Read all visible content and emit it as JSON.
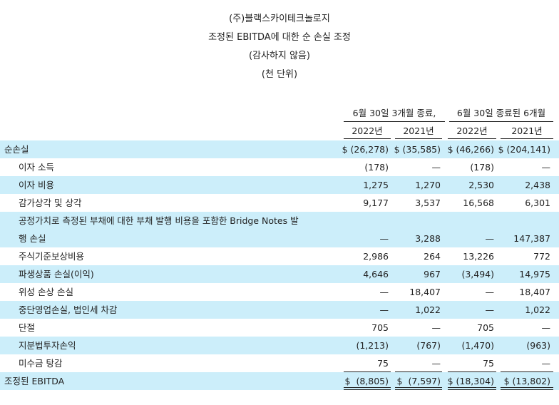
{
  "title": {
    "company": "(주)블랙스카이테크놀로지",
    "statement": "조정된 EBITDA에 대한 순 손실 조정",
    "audit_note": "(감사하지 않음)",
    "unit_note": "(천 단위)"
  },
  "columns": {
    "group1": "6월 30일 3개월 종료,",
    "group2": "6월 30일 종료된 6개월",
    "years": [
      "2022년",
      "2021년",
      "2022년",
      "2021년"
    ]
  },
  "rows": [
    {
      "label": "순손실",
      "values": [
        "$ (26,278)",
        "$ (35,585)",
        "$ (46,266)",
        "$ (204,141)"
      ]
    },
    {
      "label": "이자 소득",
      "values": [
        "(178)",
        "—",
        "(178)",
        "—"
      ]
    },
    {
      "label": "이자 비용",
      "values": [
        "1,275",
        "1,270",
        "2,530",
        "2,438"
      ]
    },
    {
      "label": "감가상각 및 상각",
      "values": [
        "9,177",
        "3,537",
        "16,568",
        "6,301"
      ]
    },
    {
      "label": "공정가치로 측정된 부채에 대한 부채 발행 비용을 포함한 Bridge Notes 발",
      "label_cont": "행 손실",
      "values": [
        "—",
        "3,288",
        "—",
        "147,387"
      ]
    },
    {
      "label": "주식기준보상비용",
      "values": [
        "2,986",
        "264",
        "13,226",
        "772"
      ]
    },
    {
      "label": "파생상품 손실(이익)",
      "values": [
        "4,646",
        "967",
        "(3,494)",
        "14,975"
      ]
    },
    {
      "label": "위성 손상 손실",
      "values": [
        "—",
        "18,407",
        "—",
        "18,407"
      ]
    },
    {
      "label": "중단영업손실, 법인세 차감",
      "values": [
        "—",
        "1,022",
        "—",
        "1,022"
      ]
    },
    {
      "label": "단절",
      "values": [
        "705",
        "—",
        "705",
        "—"
      ]
    },
    {
      "label": "지분법투자손익",
      "values": [
        "(1,213)",
        "(767)",
        "(1,470)",
        "(963)"
      ]
    },
    {
      "label": "미수금 탕감",
      "values": [
        "75",
        "—",
        "75",
        "—"
      ]
    },
    {
      "label": "조정된 EBITDA",
      "values": [
        "$  (8,805)",
        "$  (7,597)",
        "$ (18,304)",
        "$ (13,802)"
      ]
    }
  ],
  "colors": {
    "shade": "#cceefa",
    "text": "#222222"
  }
}
